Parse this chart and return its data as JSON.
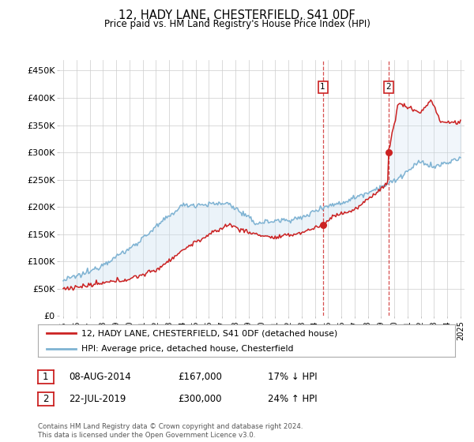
{
  "title": "12, HADY LANE, CHESTERFIELD, S41 0DF",
  "subtitle": "Price paid vs. HM Land Registry's House Price Index (HPI)",
  "ylabel_ticks": [
    "£0",
    "£50K",
    "£100K",
    "£150K",
    "£200K",
    "£250K",
    "£300K",
    "£350K",
    "£400K",
    "£450K"
  ],
  "ytick_values": [
    0,
    50000,
    100000,
    150000,
    200000,
    250000,
    300000,
    350000,
    400000,
    450000
  ],
  "ylim": [
    0,
    470000
  ],
  "year_start": 1995,
  "year_end": 2025,
  "hpi_color": "#7fb3d3",
  "price_color": "#cc2222",
  "fill_color": "#c8dff0",
  "sale1_date": "08-AUG-2014",
  "sale1_price": 167000,
  "sale1_hpi_pct": "17% ↓ HPI",
  "sale1_label": "1",
  "sale1_x": 2014.6,
  "sale1_hpi_at_sale": 200000,
  "sale2_date": "22-JUL-2019",
  "sale2_price": 300000,
  "sale2_hpi_pct": "24% ↑ HPI",
  "sale2_label": "2",
  "sale2_x": 2019.55,
  "sale2_hpi_at_sale": 242000,
  "legend_line1": "12, HADY LANE, CHESTERFIELD, S41 0DF (detached house)",
  "legend_line2": "HPI: Average price, detached house, Chesterfield",
  "footer": "Contains HM Land Registry data © Crown copyright and database right 2024.\nThis data is licensed under the Open Government Licence v3.0.",
  "background_color": "#ffffff",
  "grid_color": "#cccccc"
}
